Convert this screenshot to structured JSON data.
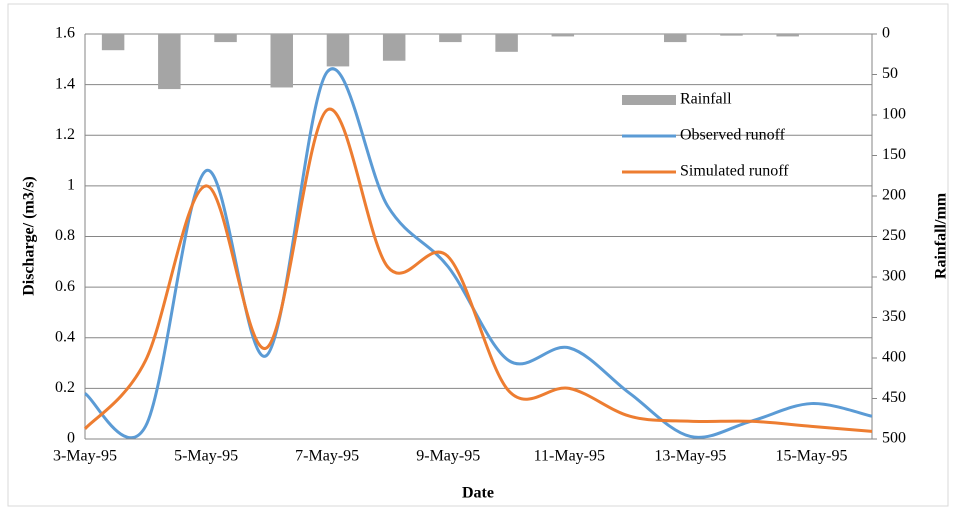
{
  "chart_data": {
    "type": "combo",
    "x_label": "Date",
    "y_label": "Discharge/ (m3/s)",
    "y2_label": "Rainfall/mm",
    "categories": [
      "3-May-95",
      null,
      "5-May-95",
      null,
      "7-May-95",
      null,
      "9-May-95",
      null,
      "11-May-95",
      null,
      "13-May-95",
      null,
      "15-May-95",
      null
    ],
    "ylim": [
      0,
      1.6
    ],
    "yticks": [
      0,
      0.2,
      0.4,
      0.6,
      0.8,
      1,
      1.2,
      1.4,
      1.6
    ],
    "y2lim": [
      0,
      500
    ],
    "y2ticks": [
      0,
      50,
      100,
      150,
      200,
      250,
      300,
      350,
      400,
      450,
      500
    ],
    "y2_inverted": true,
    "grid": true,
    "series": [
      {
        "name": "Rainfall",
        "type": "bar",
        "axis": "y2",
        "color": "#a5a5a5",
        "values": [
          20,
          68,
          10,
          66,
          40,
          33,
          10,
          22,
          3,
          0,
          10,
          2,
          3,
          0
        ]
      },
      {
        "name": "Observed runoff",
        "type": "line",
        "color": "#5b9bd5",
        "values": [
          0.18,
          0.05,
          1.06,
          0.33,
          1.45,
          0.92,
          0.68,
          0.31,
          0.36,
          0.18,
          0.01,
          0.07,
          0.14,
          0.09
        ]
      },
      {
        "name": "Simulated runoff",
        "type": "line",
        "color": "#ed7d31",
        "values": [
          0.04,
          0.31,
          1.0,
          0.36,
          1.3,
          0.68,
          0.72,
          0.19,
          0.2,
          0.09,
          0.07,
          0.07,
          0.05,
          0.03
        ]
      }
    ]
  }
}
